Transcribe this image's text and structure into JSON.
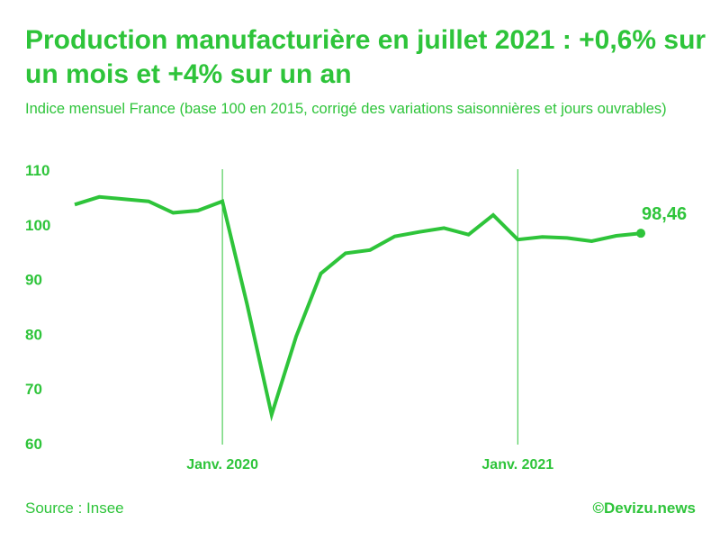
{
  "chart_data": {
    "type": "line",
    "title": "Production manufacturière en juillet 2021 : +0,6% sur un mois et +4% sur un an",
    "subtitle": "Indice mensuel France (base 100 en 2015, corrigé des variations saisonnières et jours ouvrables)",
    "xlabel": "",
    "ylabel": "",
    "ylim": [
      60,
      110
    ],
    "yticks": [
      110,
      100,
      90,
      80,
      70,
      60
    ],
    "xtick_labels": [
      {
        "label": "Janv. 2020",
        "month": "2020-01"
      },
      {
        "label": "Janv. 2021",
        "month": "2021-01"
      }
    ],
    "grid": "vertical lines at January",
    "series": [
      {
        "name": "",
        "color": "#2ec43a",
        "points": [
          {
            "month": "2019-07",
            "value": 103.7
          },
          {
            "month": "2019-08",
            "value": 105.1
          },
          {
            "month": "2019-09",
            "value": 104.7
          },
          {
            "month": "2019-10",
            "value": 104.3
          },
          {
            "month": "2019-11",
            "value": 102.2
          },
          {
            "month": "2019-12",
            "value": 102.6
          },
          {
            "month": "2020-01",
            "value": 104.3
          },
          {
            "month": "2020-02",
            "value": 85.5
          },
          {
            "month": "2020-03",
            "value": 65.3
          },
          {
            "month": "2020-04",
            "value": 79.6
          },
          {
            "month": "2020-05",
            "value": 91.1
          },
          {
            "month": "2020-06",
            "value": 94.8
          },
          {
            "month": "2020-07",
            "value": 95.4
          },
          {
            "month": "2020-08",
            "value": 97.9
          },
          {
            "month": "2020-09",
            "value": 98.7
          },
          {
            "month": "2020-10",
            "value": 99.4
          },
          {
            "month": "2020-11",
            "value": 98.2
          },
          {
            "month": "2020-12",
            "value": 101.8
          },
          {
            "month": "2021-01",
            "value": 97.3
          },
          {
            "month": "2021-02",
            "value": 97.8
          },
          {
            "month": "2021-03",
            "value": 97.6
          },
          {
            "month": "2021-04",
            "value": 97.0
          },
          {
            "month": "2021-05",
            "value": 98.0
          },
          {
            "month": "2021-06",
            "value": 98.46
          }
        ]
      }
    ],
    "annotation": {
      "text": "98,46",
      "month": "2021-06"
    }
  },
  "footer": {
    "source": "Source : Insee",
    "credit": "©Devizu.news"
  }
}
